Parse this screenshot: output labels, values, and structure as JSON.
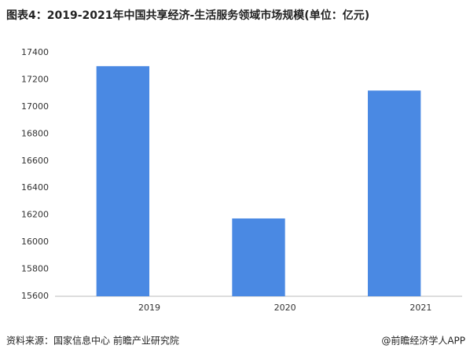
{
  "chart_data": {
    "type": "bar",
    "title": "图表4：2019-2021年中国共享经济-生活服务领域市场规模(单位：亿元)",
    "categories": [
      "2019",
      "2020",
      "2021"
    ],
    "values": [
      17300,
      16175,
      17120
    ],
    "color": "#4a89e3",
    "ylim": [
      15600,
      17400
    ],
    "yticks": [
      15600,
      15800,
      16000,
      16200,
      16400,
      16600,
      16800,
      17000,
      17200,
      17400
    ],
    "grid": false,
    "source": "资料来源：国家信息中心 前瞻产业研究院",
    "credit": "@前瞻经济学人APP"
  }
}
